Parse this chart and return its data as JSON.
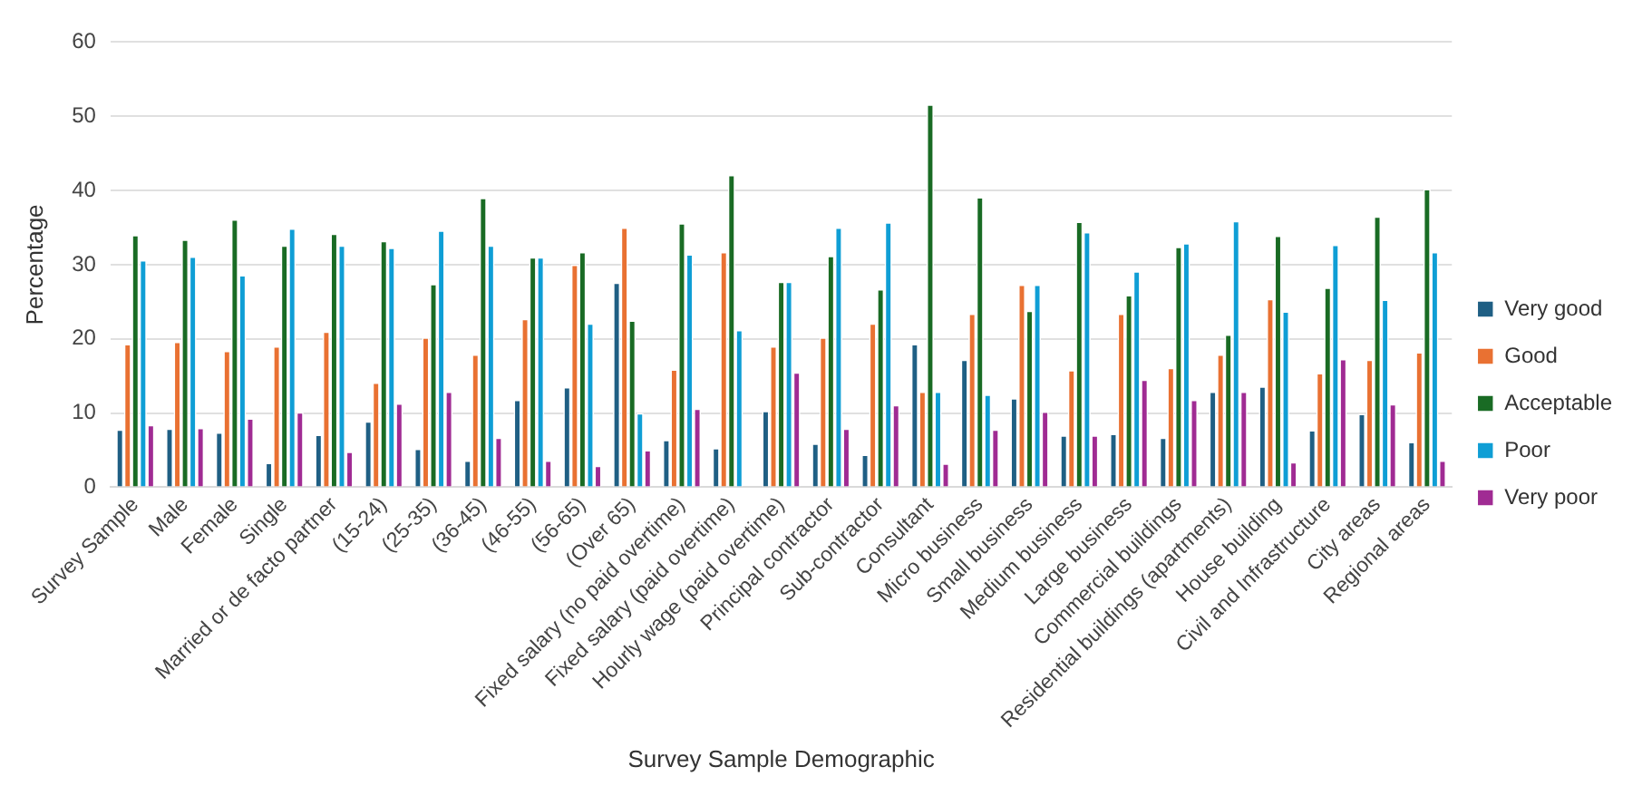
{
  "chart_data": {
    "type": "bar",
    "xlabel": "Survey Sample Demographic",
    "ylabel": "Percentage",
    "categories": [
      "Survey Sample",
      "Male",
      "Female",
      "Single",
      "Married or de facto partner",
      "(15-24)",
      "(25-35)",
      "(36-45)",
      "(46-55)",
      "(56-65)",
      "(Over 65)",
      "Fixed salary (no paid overtime)",
      "Fixed salary (paid overtime)",
      "Hourly wage (paid overtime)",
      "Principal contractor",
      "Sub-contractor",
      "Consultant",
      "Micro business",
      "Small business",
      "Medium business",
      "Large business",
      "Commercial buildings",
      "Residential buildings (apartments)",
      "House building",
      "Civil and Infrastructure",
      "City areas",
      "Regional areas"
    ],
    "series": [
      {
        "name": "Very good",
        "color": "#1f5f84",
        "values": [
          7.8,
          7.9,
          7.4,
          3.3,
          7.1,
          8.9,
          5.2,
          3.6,
          11.8,
          13.5,
          27.6,
          6.4,
          5.3,
          10.3,
          5.9,
          4.4,
          19.3,
          17.2,
          12,
          7,
          7.2,
          6.7,
          12.9,
          13.6,
          7.7,
          9.9,
          6.1
        ]
      },
      {
        "name": "Good",
        "color": "#e97132",
        "values": [
          19.3,
          19.6,
          18.4,
          19,
          21,
          14.1,
          20.2,
          17.9,
          22.7,
          30,
          35,
          15.9,
          31.7,
          19,
          20.2,
          22.1,
          12.9,
          23.4,
          27.3,
          15.8,
          23.4,
          16.1,
          17.9,
          25.4,
          15.4,
          17.2,
          18.2
        ]
      },
      {
        "name": "Acceptable",
        "color": "#196b24",
        "values": [
          34,
          33.4,
          36.1,
          32.6,
          34.2,
          33.2,
          27.4,
          39,
          31,
          31.7,
          22.5,
          35.6,
          42.1,
          27.7,
          31.2,
          26.7,
          51.6,
          39.1,
          23.8,
          35.8,
          25.9,
          32.4,
          20.6,
          33.9,
          26.9,
          36.5,
          40.2
        ]
      },
      {
        "name": "Poor",
        "color": "#0f9ed5",
        "values": [
          30.6,
          31.1,
          28.6,
          34.9,
          32.6,
          32.3,
          34.6,
          32.6,
          31,
          22.1,
          10,
          31.4,
          21.2,
          27.7,
          35,
          35.7,
          12.9,
          12.5,
          27.3,
          34.4,
          29.1,
          32.9,
          35.9,
          23.7,
          32.7,
          25.3,
          31.7
        ]
      },
      {
        "name": "Very poor",
        "color": "#a02b93",
        "values": [
          8.4,
          8,
          9.3,
          10.1,
          4.8,
          11.3,
          12.9,
          6.7,
          3.6,
          2.9,
          5,
          10.6,
          null,
          15.5,
          7.9,
          11.1,
          3.2,
          7.8,
          10.2,
          7,
          14.5,
          11.8,
          12.9,
          3.4,
          17.3,
          11.2,
          3.6
        ]
      }
    ],
    "ylim": [
      0,
      60
    ],
    "yticks": [
      0,
      10,
      20,
      30,
      40,
      50,
      60
    ],
    "grid": "y",
    "legend": "right"
  }
}
